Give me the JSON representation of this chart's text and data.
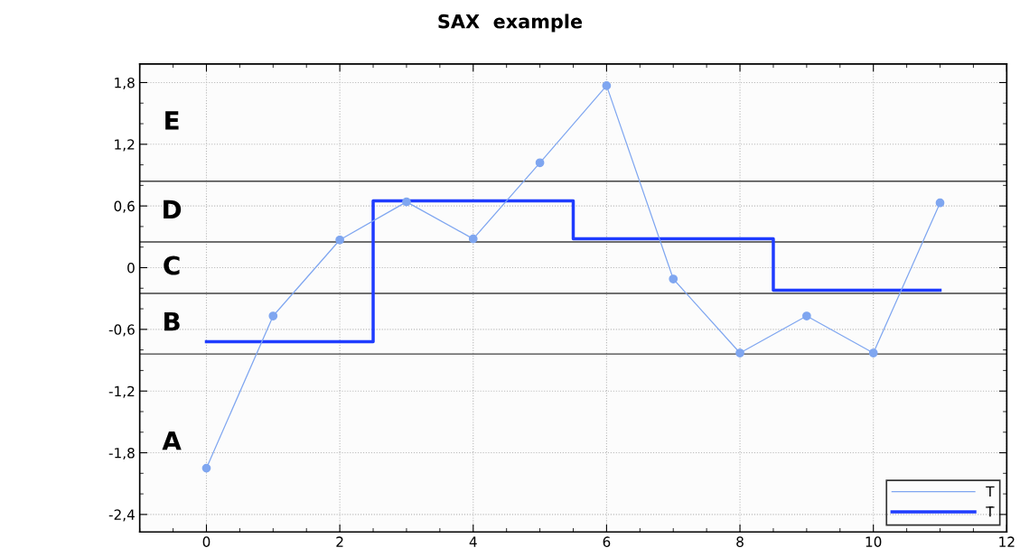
{
  "chart_data": {
    "type": "line",
    "title": "SAX  example",
    "series": [
      {
        "name": "T",
        "color": "#7fa6f0",
        "marker": "circle",
        "x": [
          0,
          1,
          2,
          3,
          4,
          5,
          6,
          7,
          8,
          9,
          10,
          11
        ],
        "values": [
          -1.95,
          -0.47,
          0.27,
          0.64,
          0.28,
          1.02,
          1.77,
          -0.11,
          -0.83,
          -0.47,
          -0.83,
          0.63
        ]
      },
      {
        "name": "T̄",
        "type": "step",
        "color": "#1f3cff",
        "x": [
          0,
          2.5,
          5.5,
          8.5,
          11
        ],
        "values": [
          -0.72,
          0.65,
          0.28,
          -0.22,
          -0.22
        ]
      }
    ],
    "xlim": [
      -1,
      12
    ],
    "xticks": [
      0,
      2,
      4,
      6,
      8,
      10,
      12
    ],
    "ylim": [
      -2.57,
      1.98
    ],
    "yticks": [
      {
        "value": -2.4,
        "label": "-2,4"
      },
      {
        "value": -1.8,
        "label": "-1,8"
      },
      {
        "value": -1.2,
        "label": "-1,2"
      },
      {
        "value": -0.6,
        "label": "-0,6"
      },
      {
        "value": 0,
        "label": "0"
      },
      {
        "value": 0.6,
        "label": "0,6"
      },
      {
        "value": 1.2,
        "label": "1,2"
      },
      {
        "value": 1.8,
        "label": "1,8"
      }
    ],
    "ref_lines": [
      {
        "axis": "y",
        "value": 0.84,
        "color": "#404040"
      },
      {
        "axis": "y",
        "value": 0.25,
        "color": "#404040"
      },
      {
        "axis": "y",
        "value": -0.25,
        "color": "#404040"
      },
      {
        "axis": "y",
        "value": -0.84,
        "color": "#404040"
      }
    ],
    "annotations": [
      "E",
      "D",
      "C",
      "B",
      "A"
    ],
    "grid": true,
    "legend": "bottom right",
    "line_style": "solid"
  }
}
